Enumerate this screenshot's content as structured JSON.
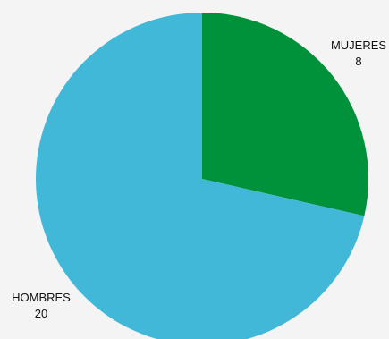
{
  "chart_data": {
    "type": "pie",
    "title": "",
    "legend": "none",
    "slices": [
      {
        "name": "MUJERES",
        "label": "MUJERES",
        "value": 8,
        "value_label": "8",
        "color": "#00923a"
      },
      {
        "name": "HOMBRES",
        "label": "HOMBRES",
        "value": 20,
        "value_label": "20",
        "color": "#42b8d8"
      }
    ]
  }
}
